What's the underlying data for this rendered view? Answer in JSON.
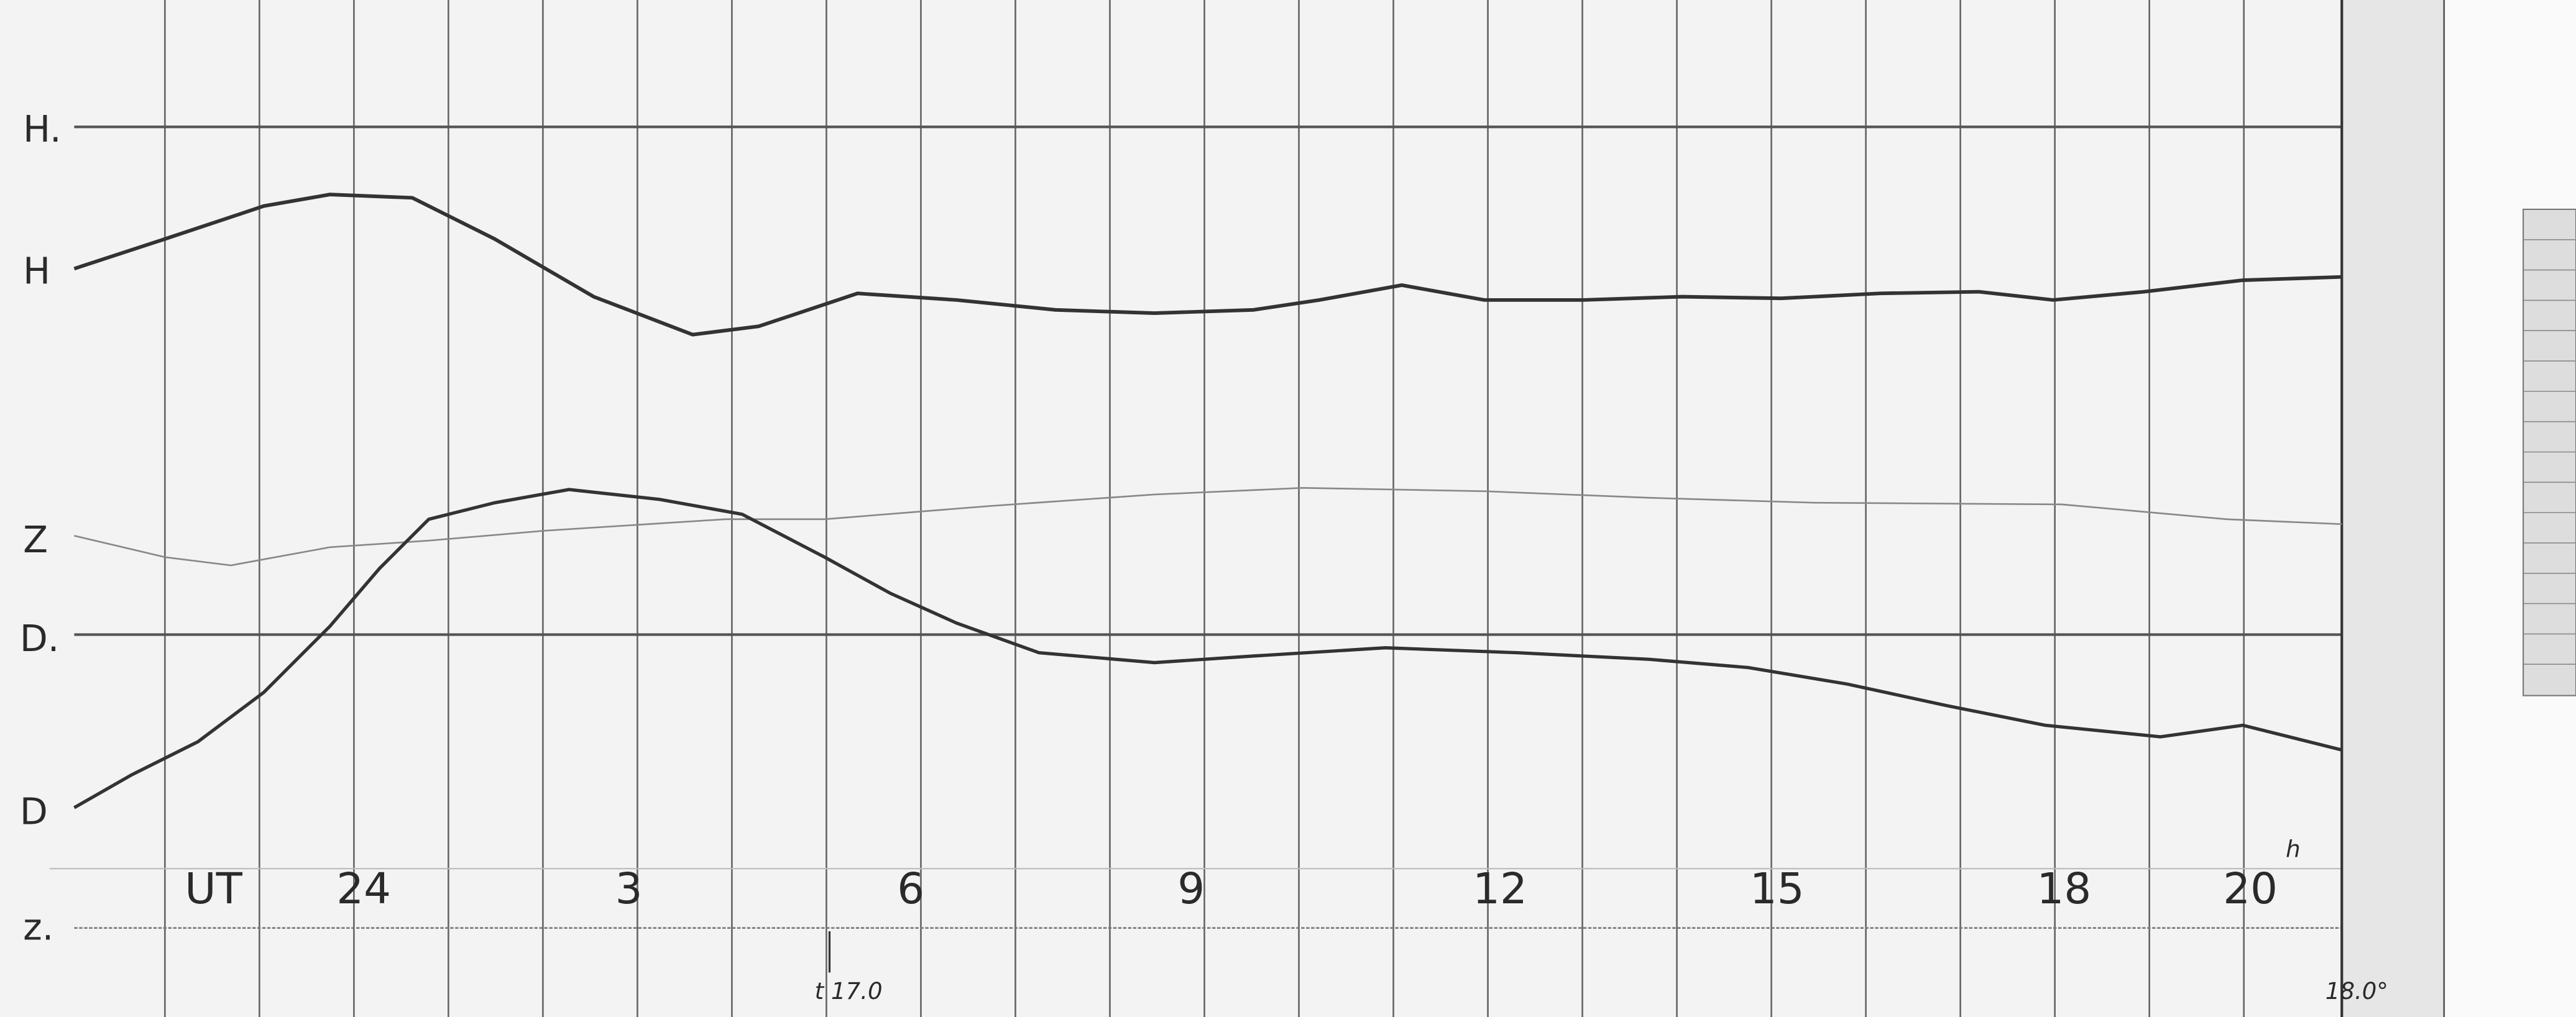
{
  "labels": {
    "H_base": "H.",
    "H": "H",
    "Z": "Z",
    "D_base": "D.",
    "D": "D",
    "Z_base": "z."
  },
  "time_axis": {
    "unit": "UT",
    "hours": [
      "24",
      "3",
      "6",
      "9",
      "12",
      "15",
      "18",
      "20"
    ],
    "hour_suffix": "h"
  },
  "marks": {
    "start": "t 17.0",
    "end": "18.0°"
  }
}
